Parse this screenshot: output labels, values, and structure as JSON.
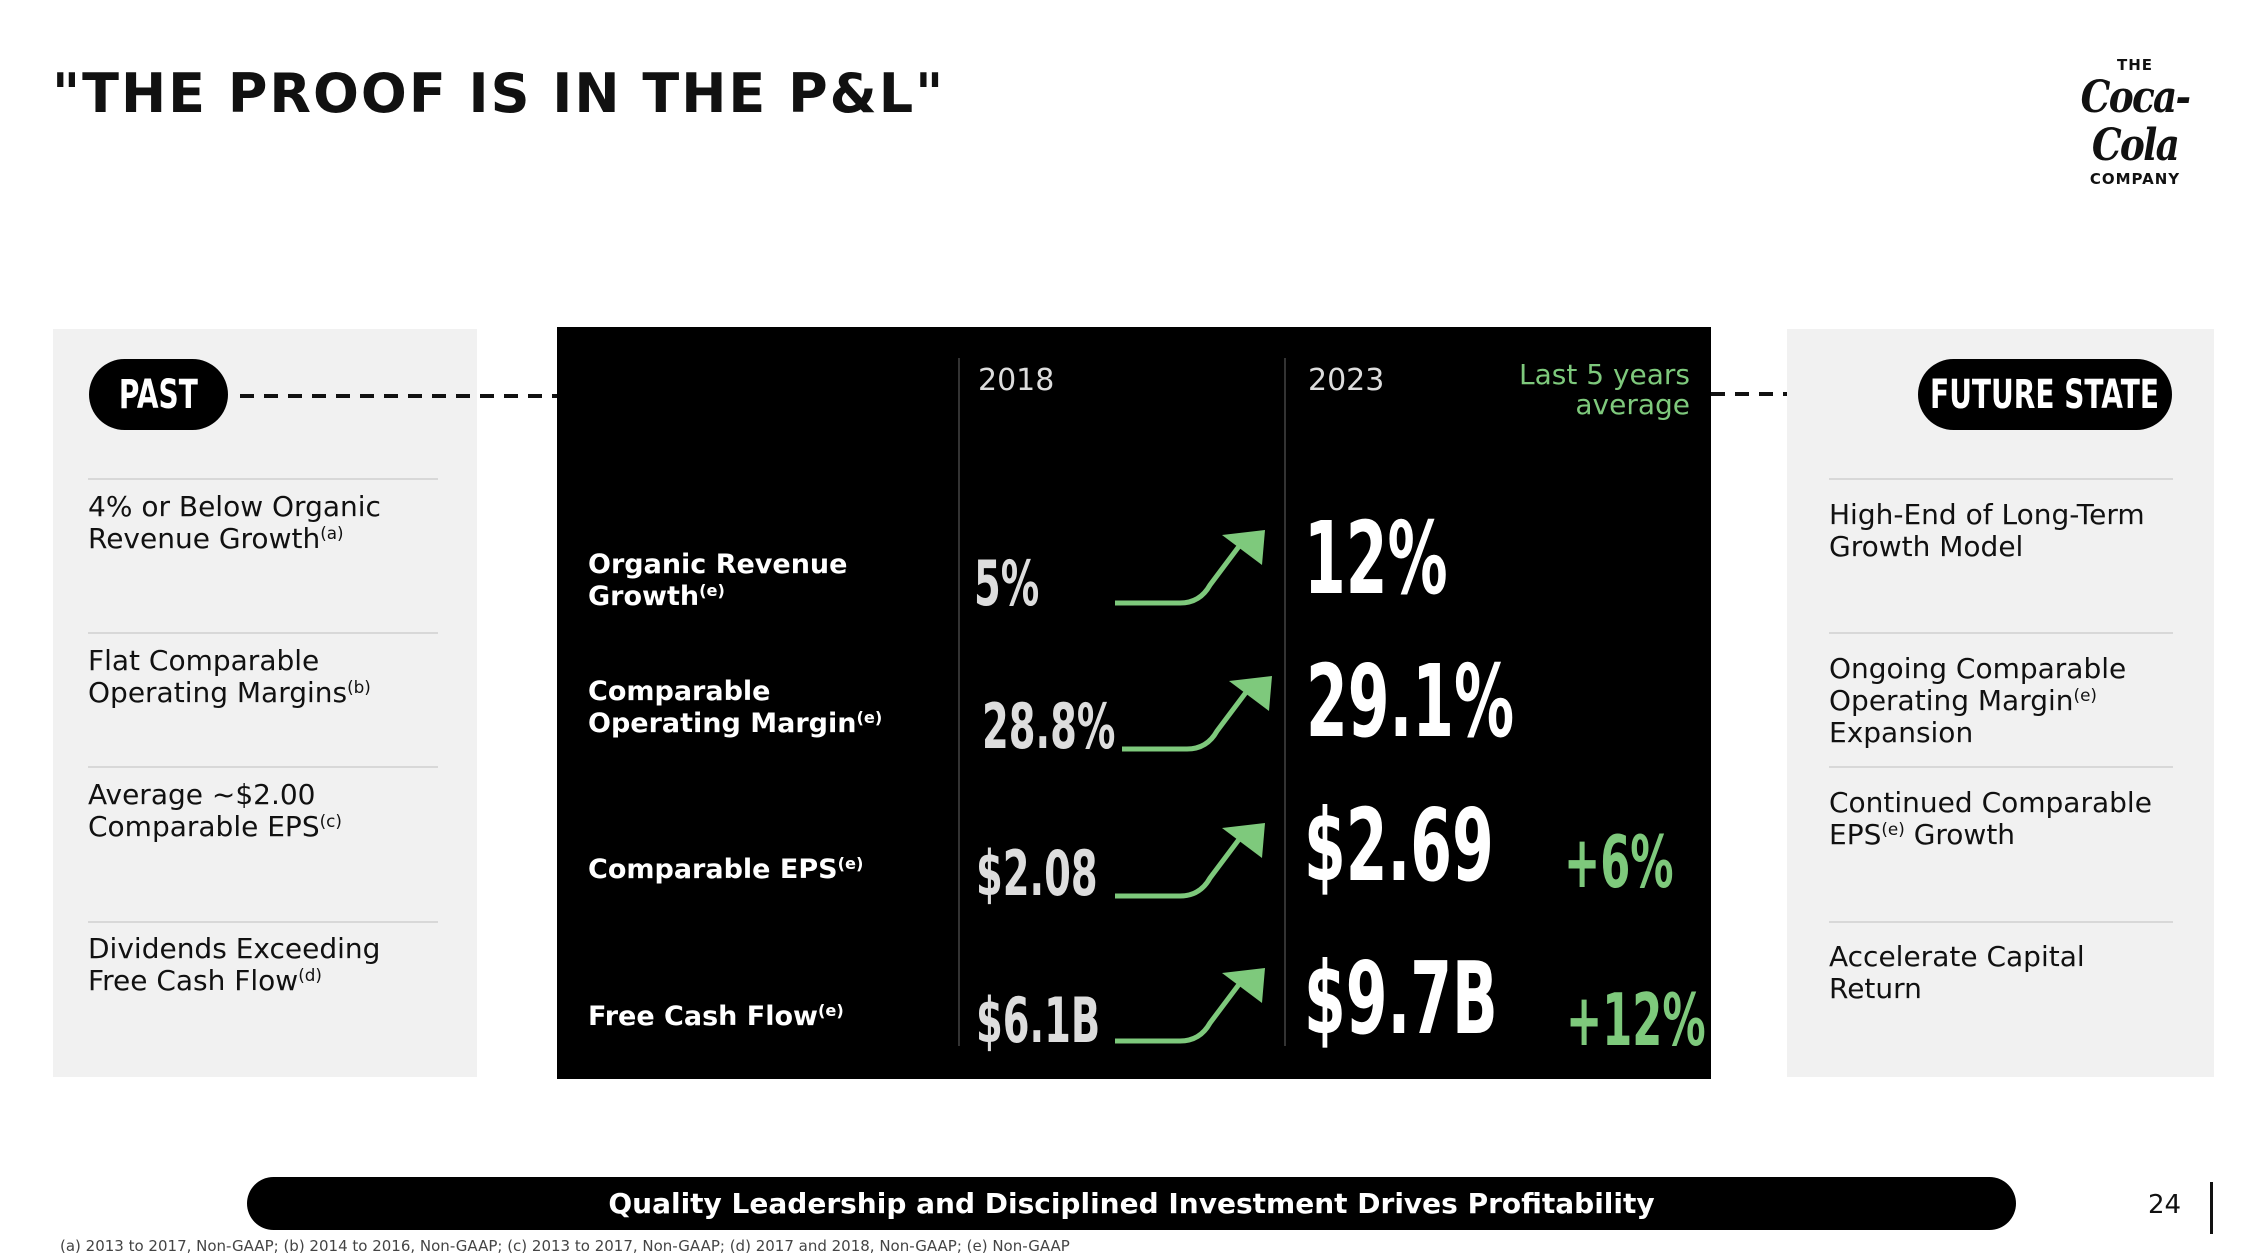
{
  "title": "\"THE PROOF IS IN THE P&L\"",
  "logo": {
    "top": "THE",
    "script": "Coca-Cola",
    "bottom": "COMPANY"
  },
  "past": {
    "label": "PAST",
    "items": [
      {
        "text": "4% or Below Organic Revenue Growth",
        "note": "(a)"
      },
      {
        "text": "Flat Comparable Operating Margins",
        "note": "(b)"
      },
      {
        "text": "Average ~$2.00 Comparable EPS",
        "note": "(c)"
      },
      {
        "text": "Dividends Exceeding Free Cash Flow",
        "note": "(d)"
      }
    ]
  },
  "table": {
    "col_2018": "2018",
    "col_2023": "2023",
    "col_avg": "Last 5 years average",
    "rows": [
      {
        "label": "Organic Revenue Growth",
        "note": "(e)",
        "v2018": "5%",
        "v2023": "12%",
        "avg": ""
      },
      {
        "label": "Comparable Operating Margin",
        "note": "(e)",
        "v2018": "28.8%",
        "v2023": "29.1%",
        "avg": ""
      },
      {
        "label": "Comparable EPS",
        "note": "(e)",
        "v2018": "$2.08",
        "v2023": "$2.69",
        "avg": "+6%"
      },
      {
        "label": "Free Cash Flow",
        "note": "(e)",
        "v2018": "$6.1B",
        "v2023": "$9.7B",
        "avg": "+12%"
      }
    ]
  },
  "future": {
    "label": "FUTURE STATE",
    "items": [
      {
        "pre": "High-End of Long-Term Growth Model",
        "note": "",
        "post": ""
      },
      {
        "pre": "Ongoing Comparable Operating Margin",
        "note": "(e)",
        "post": "Expansion"
      },
      {
        "pre": "Continued Comparable EPS",
        "note": "(e)",
        "post": "Growth"
      },
      {
        "pre": "Accelerate Capital Return",
        "note": "",
        "post": ""
      }
    ]
  },
  "banner": "Quality Leadership and Disciplined Investment Drives Profitability",
  "page_number": "24",
  "footnote": "(a) 2013 to 2017, Non-GAAP; (b) 2014 to 2016, Non-GAAP; (c) 2013 to 2017, Non-GAAP; (d) 2017 and 2018, Non-GAAP; (e) Non-GAAP",
  "colors": {
    "accent_green": "#7ec97c",
    "panel_bg": "#f1f1f1",
    "black": "#000000"
  }
}
